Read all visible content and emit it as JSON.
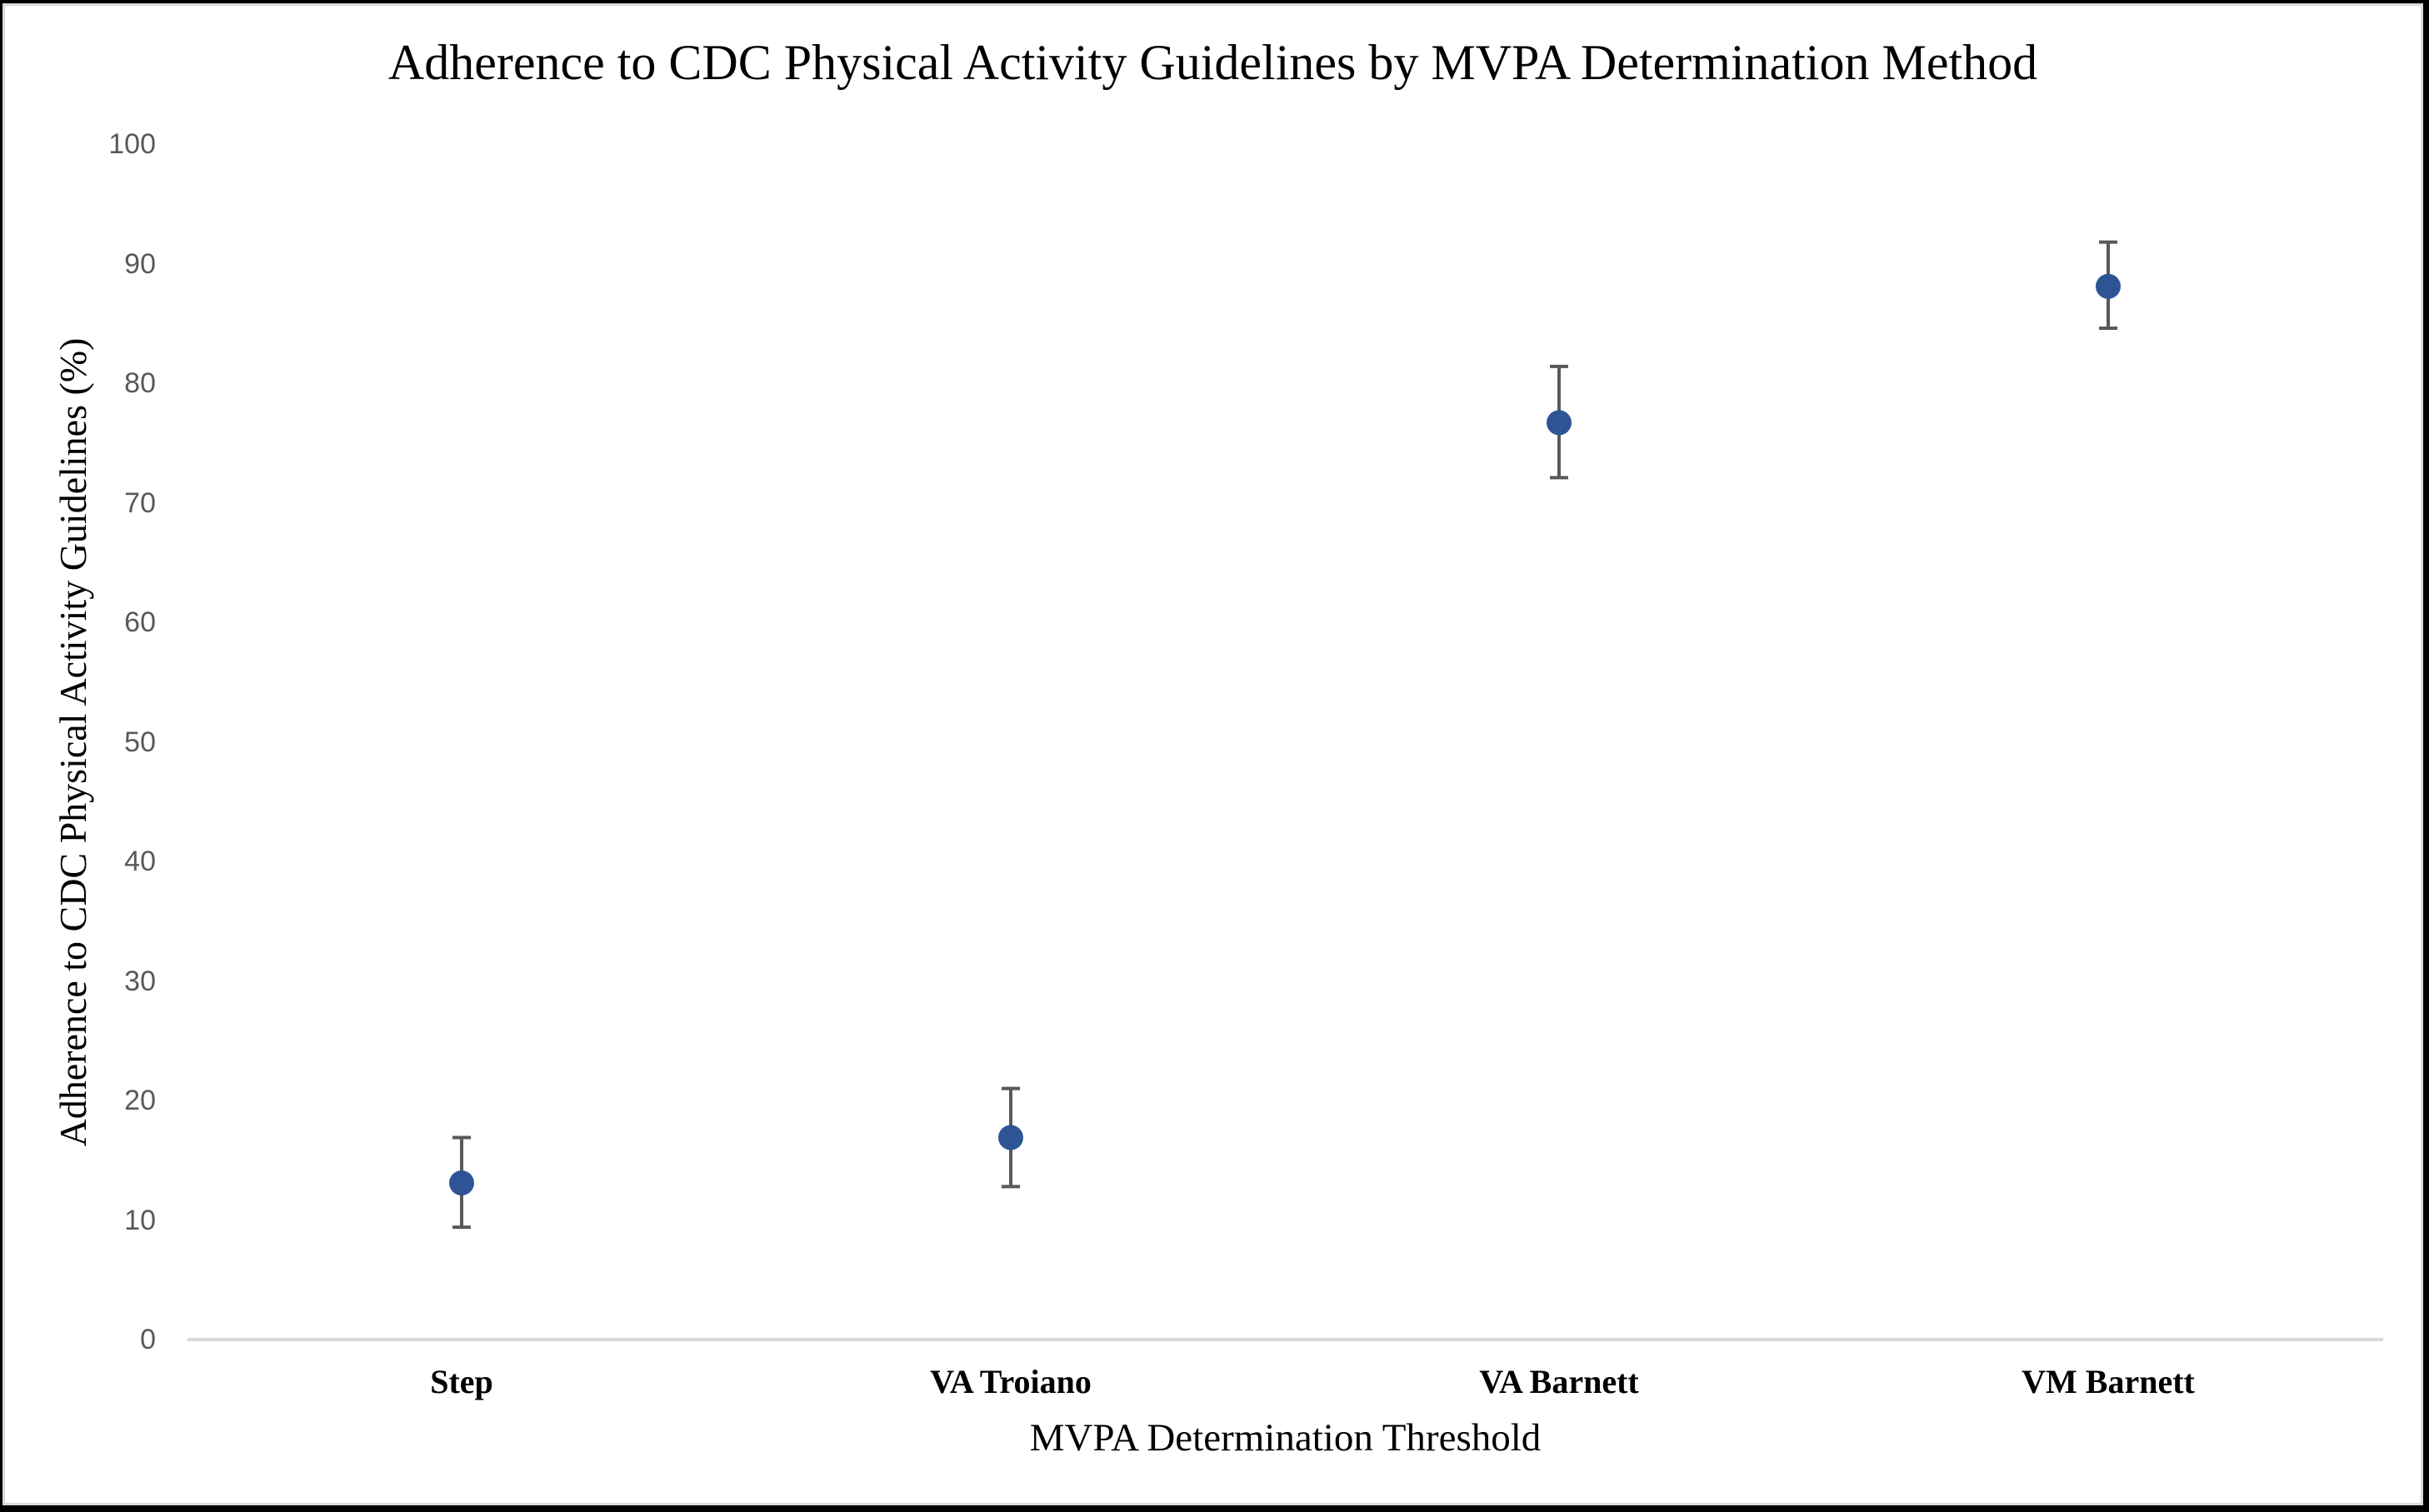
{
  "window": {
    "frame_color": "#000000",
    "chart_background": "#ffffff",
    "inner_border_color": "#d9d9d9"
  },
  "chart_data": {
    "type": "scatter",
    "title": "Adherence to CDC Physical Activity Guidelines by MVPA Determination Method",
    "xlabel": "MVPA Determination Threshold",
    "ylabel": "Adherence to CDC Physical Activity Guidelines (%)",
    "categories": [
      "Step",
      "VA Troiano",
      "VA Barnett",
      "VM Barnett"
    ],
    "points": [
      {
        "category": "Step",
        "value": 13.1,
        "ci_low": 9.4,
        "ci_high": 16.9
      },
      {
        "category": "VA Troiano",
        "value": 16.9,
        "ci_low": 12.8,
        "ci_high": 21.0
      },
      {
        "category": "VA Barnett",
        "value": 76.7,
        "ci_low": 72.1,
        "ci_high": 81.4
      },
      {
        "category": "VM Barnett",
        "value": 88.1,
        "ci_low": 84.6,
        "ci_high": 91.8
      }
    ],
    "ylim": [
      0,
      100
    ],
    "yticks": [
      100,
      90,
      80,
      70,
      60,
      50,
      40,
      30,
      20,
      10,
      0
    ],
    "grid": false,
    "legend": null,
    "marker_color": "#2F5496",
    "error_bar_color": "#595959",
    "axis_line_color": "#d9d9d9",
    "tick_label_color": "#595959"
  }
}
